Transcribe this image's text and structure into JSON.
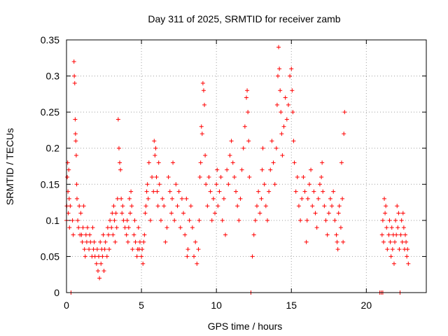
{
  "chart_data": {
    "type": "scatter",
    "title": "Day 311 of 2025, SRMTID for receiver zamb",
    "xlabel": "GPS time / hours",
    "ylabel": "SRMTID / TECUs",
    "xlim": [
      0,
      24
    ],
    "ylim": [
      0,
      0.35
    ],
    "xticks": [
      0,
      5,
      10,
      15,
      20
    ],
    "xtick_labels": [
      "0",
      "5",
      "10",
      "15",
      "20"
    ],
    "yticks": [
      0,
      0.05,
      0.1,
      0.15,
      0.2,
      0.25,
      0.3,
      0.35
    ],
    "ytick_labels": [
      "0",
      "0.05",
      "0.1",
      "0.15",
      "0.2",
      "0.25",
      "0.3",
      "0.35"
    ],
    "grid": true,
    "marker": "plus",
    "color": "#ff0000",
    "series": [
      {
        "name": "SRMTID",
        "points": [
          [
            0.0,
            0.1
          ],
          [
            0.02,
            0.12
          ],
          [
            0.05,
            0.16
          ],
          [
            0.08,
            0.18
          ],
          [
            0.1,
            0.14
          ],
          [
            0.12,
            0.11
          ],
          [
            0.15,
            0.17
          ],
          [
            0.18,
            0.13
          ],
          [
            0.2,
            0.09
          ],
          [
            0.25,
            0.12
          ],
          [
            0.3,
            0.0
          ],
          [
            0.4,
            0.1
          ],
          [
            0.45,
            0.08
          ],
          [
            0.5,
            0.32
          ],
          [
            0.52,
            0.3
          ],
          [
            0.55,
            0.29
          ],
          [
            0.58,
            0.24
          ],
          [
            0.6,
            0.22
          ],
          [
            0.62,
            0.21
          ],
          [
            0.65,
            0.19
          ],
          [
            0.68,
            0.15
          ],
          [
            0.7,
            0.13
          ],
          [
            0.75,
            0.1
          ],
          [
            0.8,
            0.09
          ],
          [
            0.85,
            0.12
          ],
          [
            0.9,
            0.08
          ],
          [
            0.95,
            0.11
          ],
          [
            1.0,
            0.08
          ],
          [
            1.05,
            0.07
          ],
          [
            1.1,
            0.09
          ],
          [
            1.15,
            0.12
          ],
          [
            1.2,
            0.06
          ],
          [
            1.25,
            0.05
          ],
          [
            1.3,
            0.08
          ],
          [
            1.35,
            0.07
          ],
          [
            1.4,
            0.09
          ],
          [
            1.5,
            0.06
          ],
          [
            1.55,
            0.08
          ],
          [
            1.6,
            0.07
          ],
          [
            1.7,
            0.05
          ],
          [
            1.75,
            0.09
          ],
          [
            1.8,
            0.06
          ],
          [
            1.85,
            0.07
          ],
          [
            1.9,
            0.05
          ],
          [
            2.0,
            0.04
          ],
          [
            2.05,
            0.06
          ],
          [
            2.1,
            0.03
          ],
          [
            2.15,
            0.05
          ],
          [
            2.2,
            0.02
          ],
          [
            2.25,
            0.07
          ],
          [
            2.3,
            0.04
          ],
          [
            2.35,
            0.06
          ],
          [
            2.4,
            0.05
          ],
          [
            2.45,
            0.08
          ],
          [
            2.5,
            0.03
          ],
          [
            2.55,
            0.06
          ],
          [
            2.6,
            0.07
          ],
          [
            2.7,
            0.05
          ],
          [
            2.75,
            0.09
          ],
          [
            2.8,
            0.08
          ],
          [
            2.85,
            0.06
          ],
          [
            2.9,
            0.1
          ],
          [
            3.0,
            0.09
          ],
          [
            3.05,
            0.11
          ],
          [
            3.1,
            0.08
          ],
          [
            3.15,
            0.12
          ],
          [
            3.2,
            0.1
          ],
          [
            3.25,
            0.07
          ],
          [
            3.3,
            0.11
          ],
          [
            3.35,
            0.09
          ],
          [
            3.4,
            0.13
          ],
          [
            3.45,
            0.24
          ],
          [
            3.5,
            0.2
          ],
          [
            3.55,
            0.18
          ],
          [
            3.6,
            0.17
          ],
          [
            3.65,
            0.13
          ],
          [
            3.7,
            0.11
          ],
          [
            3.75,
            0.12
          ],
          [
            3.8,
            0.1
          ],
          [
            3.9,
            0.09
          ],
          [
            4.0,
            0.08
          ],
          [
            4.05,
            0.1
          ],
          [
            4.1,
            0.07
          ],
          [
            4.15,
            0.09
          ],
          [
            4.2,
            0.13
          ],
          [
            4.25,
            0.11
          ],
          [
            4.3,
            0.14
          ],
          [
            4.35,
            0.12
          ],
          [
            4.4,
            0.06
          ],
          [
            4.5,
            0.08
          ],
          [
            4.55,
            0.1
          ],
          [
            4.6,
            0.07
          ],
          [
            4.7,
            0.05
          ],
          [
            4.75,
            0.06
          ],
          [
            4.8,
            0.09
          ],
          [
            4.85,
            0.06
          ],
          [
            4.9,
            0.07
          ],
          [
            5.0,
            0.05
          ],
          [
            5.05,
            0.06
          ],
          [
            5.1,
            0.04
          ],
          [
            5.15,
            0.07
          ],
          [
            5.2,
            0.08
          ],
          [
            5.25,
            0.11
          ],
          [
            5.3,
            0.12
          ],
          [
            5.35,
            0.14
          ],
          [
            5.4,
            0.15
          ],
          [
            5.45,
            0.13
          ],
          [
            5.5,
            0.18
          ],
          [
            5.6,
            0.1
          ],
          [
            5.7,
            0.16
          ],
          [
            5.8,
            0.14
          ],
          [
            5.85,
            0.21
          ],
          [
            5.9,
            0.19
          ],
          [
            5.95,
            0.2
          ],
          [
            6.0,
            0.16
          ],
          [
            6.05,
            0.14
          ],
          [
            6.1,
            0.12
          ],
          [
            6.15,
            0.18
          ],
          [
            6.2,
            0.15
          ],
          [
            6.3,
            0.1
          ],
          [
            6.4,
            0.13
          ],
          [
            6.5,
            0.12
          ],
          [
            6.6,
            0.07
          ],
          [
            6.7,
            0.09
          ],
          [
            6.8,
            0.16
          ],
          [
            6.9,
            0.14
          ],
          [
            7.0,
            0.11
          ],
          [
            7.05,
            0.13
          ],
          [
            7.1,
            0.18
          ],
          [
            7.2,
            0.1
          ],
          [
            7.3,
            0.15
          ],
          [
            7.4,
            0.12
          ],
          [
            7.5,
            0.14
          ],
          [
            7.6,
            0.09
          ],
          [
            7.7,
            0.13
          ],
          [
            7.8,
            0.11
          ],
          [
            7.9,
            0.08
          ],
          [
            8.0,
            0.13
          ],
          [
            8.05,
            0.05
          ],
          [
            8.1,
            0.06
          ],
          [
            8.2,
            0.1
          ],
          [
            8.3,
            0.12
          ],
          [
            8.4,
            0.09
          ],
          [
            8.5,
            0.05
          ],
          [
            8.6,
            0.07
          ],
          [
            8.7,
            0.04
          ],
          [
            8.8,
            0.06
          ],
          [
            8.85,
            0.1
          ],
          [
            8.9,
            0.16
          ],
          [
            8.95,
            0.18
          ],
          [
            9.0,
            0.23
          ],
          [
            9.05,
            0.22
          ],
          [
            9.1,
            0.29
          ],
          [
            9.15,
            0.28
          ],
          [
            9.2,
            0.26
          ],
          [
            9.25,
            0.19
          ],
          [
            9.3,
            0.15
          ],
          [
            9.4,
            0.12
          ],
          [
            9.5,
            0.16
          ],
          [
            9.6,
            0.14
          ],
          [
            9.7,
            0.1
          ],
          [
            9.8,
            0.13
          ],
          [
            9.9,
            0.11
          ],
          [
            10.0,
            0.15
          ],
          [
            10.05,
            0.17
          ],
          [
            10.1,
            0.12
          ],
          [
            10.2,
            0.14
          ],
          [
            10.3,
            0.16
          ],
          [
            10.4,
            0.1
          ],
          [
            10.5,
            0.13
          ],
          [
            10.6,
            0.08
          ],
          [
            10.7,
            0.17
          ],
          [
            10.8,
            0.15
          ],
          [
            10.9,
            0.19
          ],
          [
            11.0,
            0.21
          ],
          [
            11.1,
            0.18
          ],
          [
            11.2,
            0.16
          ],
          [
            11.3,
            0.14
          ],
          [
            11.4,
            0.12
          ],
          [
            11.5,
            0.1
          ],
          [
            11.6,
            0.13
          ],
          [
            11.7,
            0.17
          ],
          [
            11.8,
            0.2
          ],
          [
            11.9,
            0.23
          ],
          [
            12.0,
            0.27
          ],
          [
            12.05,
            0.28
          ],
          [
            12.1,
            0.25
          ],
          [
            12.15,
            0.21
          ],
          [
            12.2,
            0.16
          ],
          [
            12.3,
            0.0
          ],
          [
            12.4,
            0.05
          ],
          [
            12.5,
            0.08
          ],
          [
            12.6,
            0.1
          ],
          [
            12.7,
            0.12
          ],
          [
            12.8,
            0.14
          ],
          [
            12.9,
            0.11
          ],
          [
            13.0,
            0.13
          ],
          [
            13.05,
            0.17
          ],
          [
            13.1,
            0.2
          ],
          [
            13.2,
            0.15
          ],
          [
            13.3,
            0.12
          ],
          [
            13.4,
            0.1
          ],
          [
            13.5,
            0.14
          ],
          [
            13.6,
            0.17
          ],
          [
            13.7,
            0.21
          ],
          [
            13.8,
            0.18
          ],
          [
            13.9,
            0.15
          ],
          [
            14.0,
            0.2
          ],
          [
            14.05,
            0.26
          ],
          [
            14.1,
            0.3
          ],
          [
            14.15,
            0.34
          ],
          [
            14.2,
            0.31
          ],
          [
            14.25,
            0.28
          ],
          [
            14.3,
            0.25
          ],
          [
            14.35,
            0.22
          ],
          [
            14.4,
            0.19
          ],
          [
            14.5,
            0.23
          ],
          [
            14.6,
            0.27
          ],
          [
            14.7,
            0.24
          ],
          [
            14.8,
            0.26
          ],
          [
            14.9,
            0.3
          ],
          [
            15.0,
            0.31
          ],
          [
            15.05,
            0.28
          ],
          [
            15.1,
            0.25
          ],
          [
            15.15,
            0.21
          ],
          [
            15.2,
            0.18
          ],
          [
            15.3,
            0.14
          ],
          [
            15.4,
            0.16
          ],
          [
            15.5,
            0.12
          ],
          [
            15.6,
            0.1
          ],
          [
            15.7,
            0.13
          ],
          [
            15.8,
            0.16
          ],
          [
            15.9,
            0.14
          ],
          [
            16.0,
            0.07
          ],
          [
            16.05,
            0.1
          ],
          [
            16.1,
            0.13
          ],
          [
            16.2,
            0.15
          ],
          [
            16.3,
            0.17
          ],
          [
            16.4,
            0.12
          ],
          [
            16.5,
            0.14
          ],
          [
            16.6,
            0.11
          ],
          [
            16.7,
            0.09
          ],
          [
            16.8,
            0.13
          ],
          [
            16.9,
            0.15
          ],
          [
            17.0,
            0.16
          ],
          [
            17.05,
            0.18
          ],
          [
            17.1,
            0.14
          ],
          [
            17.2,
            0.12
          ],
          [
            17.3,
            0.1
          ],
          [
            17.4,
            0.08
          ],
          [
            17.5,
            0.11
          ],
          [
            17.6,
            0.13
          ],
          [
            17.7,
            0.12
          ],
          [
            17.8,
            0.14
          ],
          [
            17.9,
            0.1
          ],
          [
            18.0,
            0.08
          ],
          [
            18.05,
            0.07
          ],
          [
            18.1,
            0.06
          ],
          [
            18.15,
            0.11
          ],
          [
            18.2,
            0.12
          ],
          [
            18.3,
            0.09
          ],
          [
            18.35,
            0.18
          ],
          [
            18.4,
            0.13
          ],
          [
            18.45,
            0.07
          ],
          [
            18.5,
            0.22
          ],
          [
            18.55,
            0.25
          ],
          [
            20.9,
            0.0
          ],
          [
            21.0,
            0.0
          ],
          [
            21.1,
            0.0
          ],
          [
            21.05,
            0.08
          ],
          [
            21.1,
            0.1
          ],
          [
            21.15,
            0.07
          ],
          [
            21.2,
            0.13
          ],
          [
            21.25,
            0.11
          ],
          [
            21.3,
            0.12
          ],
          [
            21.35,
            0.09
          ],
          [
            21.4,
            0.06
          ],
          [
            21.5,
            0.08
          ],
          [
            21.55,
            0.1
          ],
          [
            21.6,
            0.07
          ],
          [
            21.65,
            0.05
          ],
          [
            21.7,
            0.09
          ],
          [
            21.75,
            0.06
          ],
          [
            21.8,
            0.08
          ],
          [
            21.85,
            0.04
          ],
          [
            21.9,
            0.07
          ],
          [
            21.95,
            0.1
          ],
          [
            22.0,
            0.08
          ],
          [
            22.05,
            0.12
          ],
          [
            22.1,
            0.09
          ],
          [
            22.15,
            0.11
          ],
          [
            22.2,
            0.06
          ],
          [
            22.25,
            0.0
          ],
          [
            22.3,
            0.08
          ],
          [
            22.35,
            0.1
          ],
          [
            22.4,
            0.07
          ],
          [
            22.45,
            0.11
          ],
          [
            22.5,
            0.09
          ],
          [
            22.55,
            0.06
          ],
          [
            22.6,
            0.08
          ],
          [
            22.65,
            0.07
          ],
          [
            22.7,
            0.05
          ],
          [
            22.75,
            0.06
          ],
          [
            22.8,
            0.04
          ]
        ]
      }
    ]
  }
}
